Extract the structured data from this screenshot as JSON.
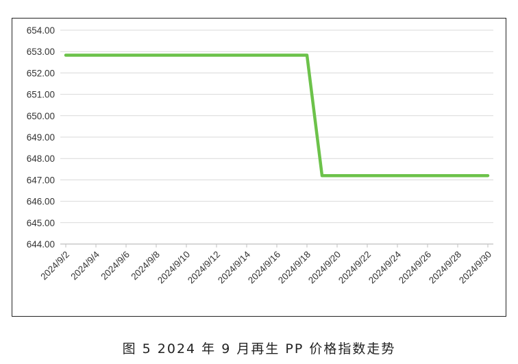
{
  "chart_data": {
    "type": "line",
    "caption": "图 5  2024 年 9 月再生 PP 价格指数走势",
    "x": [
      "2024/9/2",
      "2024/9/3",
      "2024/9/4",
      "2024/9/5",
      "2024/9/6",
      "2024/9/7",
      "2024/9/8",
      "2024/9/9",
      "2024/9/10",
      "2024/9/11",
      "2024/9/12",
      "2024/9/13",
      "2024/9/14",
      "2024/9/15",
      "2024/9/16",
      "2024/9/17",
      "2024/9/18",
      "2024/9/19",
      "2024/9/20",
      "2024/9/21",
      "2024/9/22",
      "2024/9/23",
      "2024/9/24",
      "2024/9/25",
      "2024/9/26",
      "2024/9/27",
      "2024/9/28",
      "2024/9/29",
      "2024/9/30"
    ],
    "xtick_labels": [
      "2024/9/2",
      "2024/9/4",
      "2024/9/6",
      "2024/9/8",
      "2024/9/10",
      "2024/9/12",
      "2024/9/14",
      "2024/9/16",
      "2024/9/18",
      "2024/9/20",
      "2024/9/22",
      "2024/9/24",
      "2024/9/26",
      "2024/9/28",
      "2024/9/30"
    ],
    "series": [
      {
        "values": [
          652.83,
          652.83,
          652.83,
          652.83,
          652.83,
          652.83,
          652.83,
          652.83,
          652.83,
          652.83,
          652.83,
          652.83,
          652.83,
          652.83,
          652.83,
          652.83,
          652.83,
          647.2,
          647.2,
          647.2,
          647.2,
          647.2,
          647.2,
          647.2,
          647.2,
          647.2,
          647.2,
          647.2,
          647.2
        ],
        "color": "#6cc24a"
      }
    ],
    "yticks": [
      "644.00",
      "645.00",
      "646.00",
      "647.00",
      "648.00",
      "649.00",
      "650.00",
      "651.00",
      "652.00",
      "653.00",
      "654.00"
    ],
    "ylim": [
      644,
      654
    ],
    "grid": true,
    "legend": "none"
  }
}
